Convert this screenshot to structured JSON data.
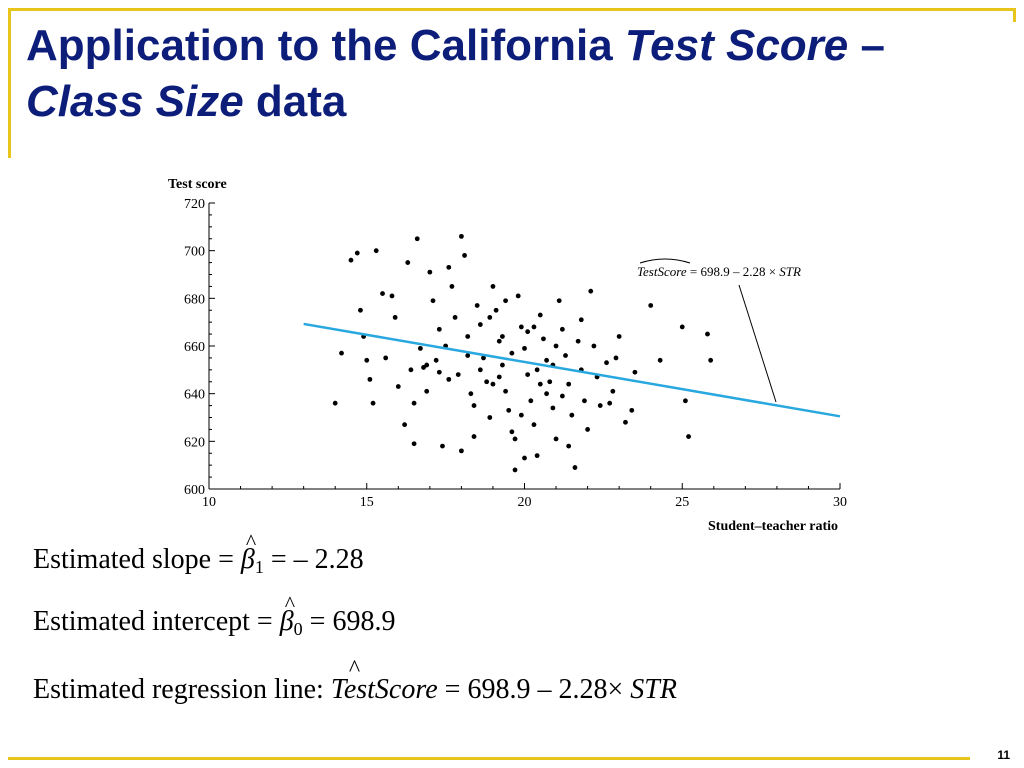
{
  "slide": {
    "title_part1": "Application to the California ",
    "title_italic1": "Test Score",
    "title_part2": " – ",
    "title_italic2": "Class Size",
    "title_part3": " data",
    "page_number": "11"
  },
  "equations": {
    "slope_label": "Estimated slope  =",
    "slope_symbol": "β",
    "slope_hat": "^",
    "slope_sub": "1",
    "slope_value": " = – 2.28",
    "intercept_label": "Estimated intercept =",
    "intercept_symbol": "β",
    "intercept_hat": "^",
    "intercept_sub": "0",
    "intercept_value": " = 698.9",
    "line_label": "Estimated regression line: ",
    "line_lhs": "TestScore",
    "line_hat": "^",
    "line_rhs": " = 698.9 – 2.28× ",
    "line_var": "STR"
  },
  "chart_data": {
    "type": "scatter",
    "ylabel": "Test score",
    "xlabel": "Student–teacher ratio",
    "xlim": [
      10,
      30
    ],
    "ylim": [
      600,
      720
    ],
    "xticks": [
      10,
      15,
      20,
      25,
      30
    ],
    "yticks": [
      600,
      620,
      640,
      660,
      680,
      700,
      720
    ],
    "annotation": {
      "lhs": "TestScore",
      "rhs": " = 698.9 – 2.28 × ",
      "var": "STR"
    },
    "regression_line": {
      "intercept": 698.9,
      "slope": -2.28,
      "x_range": [
        13,
        30
      ],
      "color": "#29a8e0"
    },
    "point_color": "#000000",
    "points": [
      [
        14.0,
        636
      ],
      [
        14.2,
        657
      ],
      [
        14.5,
        696
      ],
      [
        14.7,
        699
      ],
      [
        14.8,
        675
      ],
      [
        14.9,
        664
      ],
      [
        15.0,
        654
      ],
      [
        15.1,
        646
      ],
      [
        15.2,
        636
      ],
      [
        15.3,
        700
      ],
      [
        15.5,
        682
      ],
      [
        15.6,
        655
      ],
      [
        15.8,
        681
      ],
      [
        15.9,
        672
      ],
      [
        16.0,
        643
      ],
      [
        16.2,
        627
      ],
      [
        16.3,
        695
      ],
      [
        16.4,
        650
      ],
      [
        16.5,
        636
      ],
      [
        16.5,
        619
      ],
      [
        16.6,
        705
      ],
      [
        16.7,
        659
      ],
      [
        16.8,
        651
      ],
      [
        16.9,
        641
      ],
      [
        17.0,
        691
      ],
      [
        17.1,
        679
      ],
      [
        17.2,
        654
      ],
      [
        17.3,
        649
      ],
      [
        17.4,
        618
      ],
      [
        17.5,
        660
      ],
      [
        17.6,
        693
      ],
      [
        17.7,
        685
      ],
      [
        17.8,
        672
      ],
      [
        17.9,
        648
      ],
      [
        18.0,
        706
      ],
      [
        18.1,
        698
      ],
      [
        18.2,
        664
      ],
      [
        18.3,
        640
      ],
      [
        18.4,
        622
      ],
      [
        18.5,
        677
      ],
      [
        18.6,
        669
      ],
      [
        18.7,
        655
      ],
      [
        18.8,
        645
      ],
      [
        18.9,
        630
      ],
      [
        19.0,
        685
      ],
      [
        19.1,
        675
      ],
      [
        19.2,
        662
      ],
      [
        19.3,
        652
      ],
      [
        19.4,
        641
      ],
      [
        19.5,
        633
      ],
      [
        19.6,
        624
      ],
      [
        19.7,
        608
      ],
      [
        19.8,
        681
      ],
      [
        19.9,
        668
      ],
      [
        20.0,
        659
      ],
      [
        20.1,
        648
      ],
      [
        20.2,
        637
      ],
      [
        20.3,
        627
      ],
      [
        20.4,
        614
      ],
      [
        20.5,
        673
      ],
      [
        20.6,
        663
      ],
      [
        20.7,
        654
      ],
      [
        20.8,
        645
      ],
      [
        20.9,
        634
      ],
      [
        21.0,
        621
      ],
      [
        21.1,
        679
      ],
      [
        21.2,
        667
      ],
      [
        21.3,
        656
      ],
      [
        21.4,
        644
      ],
      [
        21.5,
        631
      ],
      [
        21.6,
        609
      ],
      [
        21.7,
        662
      ],
      [
        21.8,
        650
      ],
      [
        21.9,
        637
      ],
      [
        22.0,
        625
      ],
      [
        22.1,
        683
      ],
      [
        22.2,
        660
      ],
      [
        22.3,
        647
      ],
      [
        22.4,
        635
      ],
      [
        22.6,
        653
      ],
      [
        22.8,
        641
      ],
      [
        23.0,
        664
      ],
      [
        23.2,
        628
      ],
      [
        23.5,
        649
      ],
      [
        24.0,
        677
      ],
      [
        24.3,
        654
      ],
      [
        25.0,
        668
      ],
      [
        25.1,
        637
      ],
      [
        25.2,
        622
      ],
      [
        25.8,
        665
      ],
      [
        25.9,
        654
      ],
      [
        18.9,
        672
      ],
      [
        19.3,
        664
      ],
      [
        19.6,
        657
      ],
      [
        20.1,
        666
      ],
      [
        20.4,
        650
      ],
      [
        19.0,
        644
      ],
      [
        18.6,
        650
      ],
      [
        21.0,
        660
      ],
      [
        20.7,
        640
      ],
      [
        19.9,
        631
      ],
      [
        18.2,
        656
      ],
      [
        17.6,
        646
      ],
      [
        22.7,
        636
      ],
      [
        21.8,
        671
      ],
      [
        19.4,
        679
      ],
      [
        20.3,
        668
      ],
      [
        18.4,
        635
      ],
      [
        17.3,
        667
      ],
      [
        16.9,
        652
      ],
      [
        21.4,
        618
      ],
      [
        20.0,
        613
      ],
      [
        23.4,
        633
      ],
      [
        22.9,
        655
      ],
      [
        18.0,
        616
      ],
      [
        19.7,
        621
      ],
      [
        20.9,
        652
      ],
      [
        19.2,
        647
      ],
      [
        21.2,
        639
      ],
      [
        20.5,
        644
      ]
    ]
  }
}
